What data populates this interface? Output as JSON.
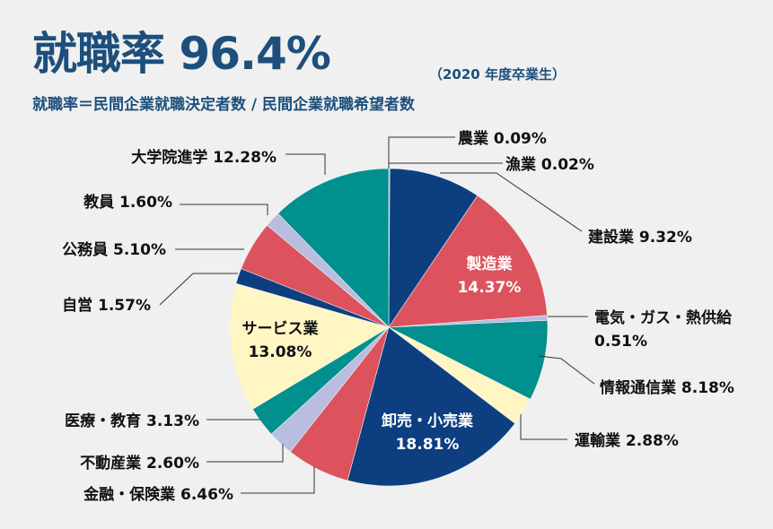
{
  "header": {
    "title": "就職率 96.4%",
    "year_note": "（2020 年度卒業生）",
    "formula": "就職率＝民間企業就職決定者数 / 民間企業就職希望者数"
  },
  "colors": {
    "title": "#1d4f7c",
    "navy": "#0d3f80",
    "red": "#dc535e",
    "lavender": "#b9bde0",
    "teal": "#00908e",
    "cream": "#fff6c4",
    "background": "#f0f0f0"
  },
  "chart_data": {
    "type": "pie",
    "title": "就職率 96.4%",
    "start": "top, clockwise",
    "slices": [
      {
        "label": "農業",
        "value": 0.09,
        "text": "農業 0.09%",
        "color": "#0d3f80"
      },
      {
        "label": "漁業",
        "value": 0.02,
        "text": "漁業 0.02%",
        "color": "#0d3f80"
      },
      {
        "label": "建設業",
        "value": 9.32,
        "text": "建設業 9.32%",
        "color": "#0d3f80"
      },
      {
        "label": "製造業",
        "value": 14.37,
        "text": "製造業",
        "text2": "14.37%",
        "color": "#dc535e"
      },
      {
        "label": "電気・ガス・熱供給",
        "value": 0.51,
        "text": "電気・ガス・熱供給",
        "text2": "0.51%",
        "color": "#b9bde0"
      },
      {
        "label": "情報通信業",
        "value": 8.18,
        "text": "情報通信業 8.18%",
        "color": "#00908e"
      },
      {
        "label": "運輸業",
        "value": 2.88,
        "text": "運輸業 2.88%",
        "color": "#fff6c4"
      },
      {
        "label": "卸売・小売業",
        "value": 18.81,
        "text": "卸売・小売業",
        "text2": "18.81%",
        "color": "#0d3f80"
      },
      {
        "label": "金融・保険業",
        "value": 6.46,
        "text": "金融・保険業 6.46%",
        "color": "#dc535e"
      },
      {
        "label": "不動産業",
        "value": 2.6,
        "text": "不動産業 2.60%",
        "color": "#b9bde0"
      },
      {
        "label": "医療・教育",
        "value": 3.13,
        "text": "医療・教育 3.13%",
        "color": "#00908e"
      },
      {
        "label": "サービス業",
        "value": 13.08,
        "text": "サービス業",
        "text2": "13.08%",
        "color": "#fff6c4"
      },
      {
        "label": "自営",
        "value": 1.57,
        "text": "自営 1.57%",
        "color": "#0d3f80"
      },
      {
        "label": "公務員",
        "value": 5.1,
        "text": "公務員 5.10%",
        "color": "#dc535e"
      },
      {
        "label": "教員",
        "value": 1.6,
        "text": "教員 1.60%",
        "color": "#b9bde0"
      },
      {
        "label": "大学院進学",
        "value": 12.28,
        "text": "大学院進学 12.28%",
        "color": "#00908e"
      }
    ]
  }
}
